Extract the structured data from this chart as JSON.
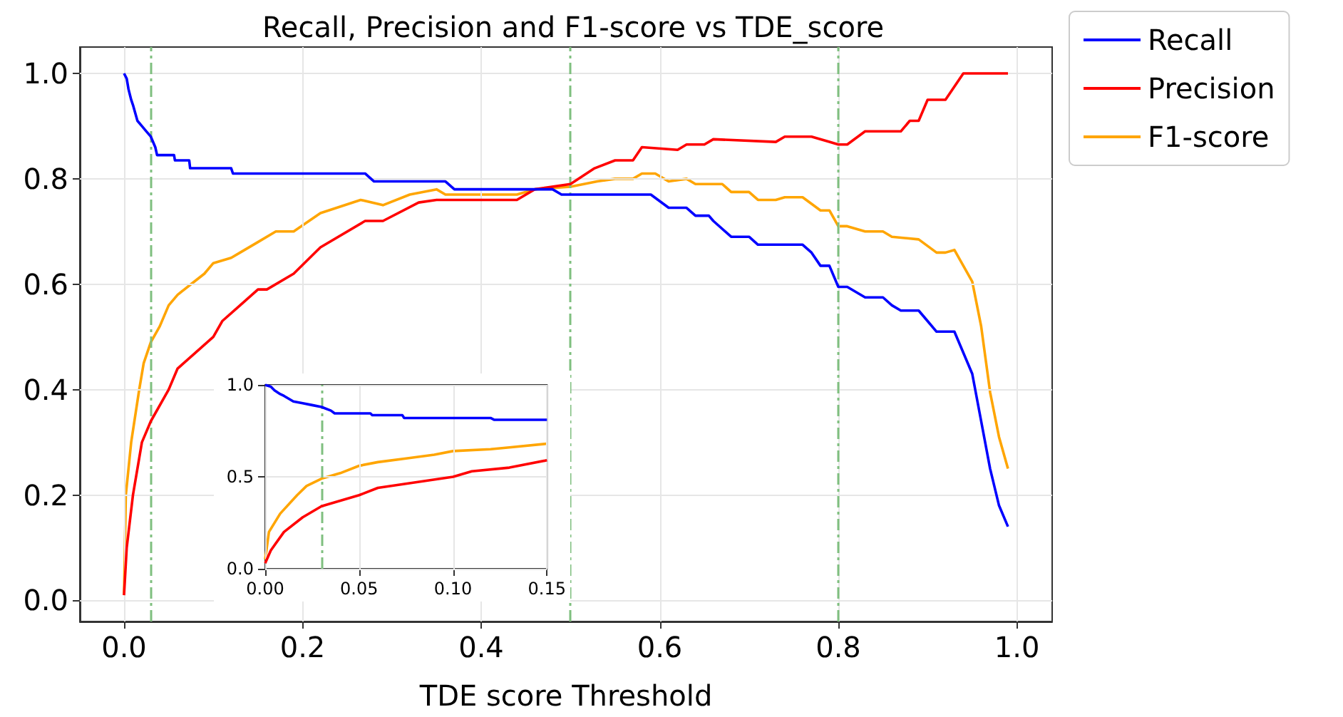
{
  "chart_data": [
    {
      "type": "line",
      "title": "Recall, Precision and F1-score vs TDE_score",
      "xlabel": "TDE score Threshold",
      "xlim": [
        -0.0495,
        1.0395
      ],
      "ylim": [
        -0.04,
        1.05
      ],
      "xticks": [
        {
          "value": 0,
          "label": "0.0"
        },
        {
          "value": 0.2,
          "label": "0.2"
        },
        {
          "value": 0.4,
          "label": "0.4"
        },
        {
          "value": 0.6,
          "label": "0.6"
        },
        {
          "value": 0.8,
          "label": "0.8"
        },
        {
          "value": 1,
          "label": "1.0"
        }
      ],
      "yticks": [
        {
          "value": 0,
          "label": "0.0"
        },
        {
          "value": 0.2,
          "label": "0.2"
        },
        {
          "value": 0.4,
          "label": "0.4"
        },
        {
          "value": 0.6,
          "label": "0.6"
        },
        {
          "value": 0.8,
          "label": "0.8"
        },
        {
          "value": 1,
          "label": "1.0"
        }
      ],
      "grid": true,
      "legend": "top right",
      "marker": "none",
      "line_style": "solid",
      "series": [
        {
          "name": "Recall",
          "color": "#0000ff",
          "x": [
            0,
            0.003,
            0.005,
            0.008,
            0.01,
            0.015,
            0.02,
            0.025,
            0.03,
            0.035,
            0.037,
            0.056,
            0.057,
            0.073,
            0.074,
            0.12,
            0.122,
            0.27,
            0.28,
            0.36,
            0.37,
            0.48,
            0.49,
            0.59,
            0.61,
            0.63,
            0.64,
            0.655,
            0.66,
            0.68,
            0.7,
            0.71,
            0.76,
            0.77,
            0.78,
            0.79,
            0.8,
            0.81,
            0.83,
            0.85,
            0.86,
            0.87,
            0.89,
            0.9,
            0.91,
            0.93,
            0.95,
            0.96,
            0.97,
            0.98,
            0.99
          ],
          "values": [
            1.0,
            0.99,
            0.97,
            0.95,
            0.94,
            0.91,
            0.9,
            0.89,
            0.88,
            0.86,
            0.845,
            0.845,
            0.835,
            0.835,
            0.82,
            0.82,
            0.81,
            0.81,
            0.795,
            0.795,
            0.78,
            0.78,
            0.77,
            0.77,
            0.745,
            0.745,
            0.73,
            0.73,
            0.72,
            0.69,
            0.69,
            0.675,
            0.675,
            0.66,
            0.635,
            0.635,
            0.595,
            0.595,
            0.575,
            0.575,
            0.56,
            0.55,
            0.55,
            0.53,
            0.51,
            0.51,
            0.43,
            0.34,
            0.25,
            0.18,
            0.14
          ]
        },
        {
          "name": "Precision",
          "color": "#ff0000",
          "x": [
            0,
            0.003,
            0.01,
            0.02,
            0.03,
            0.05,
            0.06,
            0.08,
            0.1,
            0.11,
            0.13,
            0.15,
            0.16,
            0.19,
            0.22,
            0.27,
            0.29,
            0.33,
            0.35,
            0.44,
            0.46,
            0.5,
            0.527,
            0.55,
            0.57,
            0.58,
            0.62,
            0.63,
            0.65,
            0.66,
            0.73,
            0.74,
            0.77,
            0.79,
            0.8,
            0.81,
            0.83,
            0.87,
            0.88,
            0.89,
            0.9,
            0.92,
            0.94,
            0.99
          ],
          "values": [
            0.01,
            0.1,
            0.2,
            0.3,
            0.34,
            0.4,
            0.44,
            0.47,
            0.5,
            0.53,
            0.56,
            0.59,
            0.59,
            0.62,
            0.67,
            0.72,
            0.72,
            0.755,
            0.76,
            0.76,
            0.78,
            0.79,
            0.82,
            0.835,
            0.835,
            0.86,
            0.855,
            0.865,
            0.865,
            0.875,
            0.87,
            0.88,
            0.88,
            0.87,
            0.865,
            0.865,
            0.89,
            0.89,
            0.91,
            0.91,
            0.95,
            0.95,
            1.0,
            1.0
          ]
        },
        {
          "name": "F1-score",
          "color": "#ffa500",
          "x": [
            0,
            0.002,
            0.008,
            0.017,
            0.022,
            0.03,
            0.04,
            0.05,
            0.06,
            0.075,
            0.09,
            0.1,
            0.12,
            0.13,
            0.15,
            0.17,
            0.19,
            0.22,
            0.265,
            0.29,
            0.32,
            0.35,
            0.36,
            0.44,
            0.46,
            0.5,
            0.53,
            0.55,
            0.57,
            0.58,
            0.595,
            0.61,
            0.63,
            0.64,
            0.67,
            0.68,
            0.7,
            0.71,
            0.73,
            0.74,
            0.76,
            0.78,
            0.79,
            0.8,
            0.81,
            0.83,
            0.85,
            0.86,
            0.89,
            0.91,
            0.92,
            0.93,
            0.95,
            0.96,
            0.97,
            0.98,
            0.99
          ],
          "values": [
            0.01,
            0.2,
            0.3,
            0.4,
            0.45,
            0.49,
            0.52,
            0.56,
            0.58,
            0.6,
            0.62,
            0.64,
            0.65,
            0.66,
            0.68,
            0.7,
            0.7,
            0.735,
            0.76,
            0.75,
            0.77,
            0.78,
            0.77,
            0.77,
            0.78,
            0.785,
            0.795,
            0.8,
            0.8,
            0.81,
            0.81,
            0.795,
            0.8,
            0.79,
            0.79,
            0.775,
            0.775,
            0.76,
            0.76,
            0.765,
            0.765,
            0.74,
            0.74,
            0.71,
            0.71,
            0.7,
            0.7,
            0.69,
            0.685,
            0.66,
            0.66,
            0.665,
            0.605,
            0.52,
            0.395,
            0.31,
            0.25
          ]
        }
      ],
      "ref_lines": [
        {
          "axis": "x",
          "value": 0.03,
          "color": "#7fbf7f",
          "line_style": "dashed"
        },
        {
          "axis": "x",
          "value": 0.5,
          "color": "#7fbf7f",
          "line_style": "dashed"
        },
        {
          "axis": "x",
          "value": 0.8,
          "color": "#7fbf7f",
          "line_style": "dashed"
        }
      ]
    },
    {
      "type": "line",
      "xlim": [
        0,
        0.15
      ],
      "ylim": [
        0,
        1
      ],
      "xticks": [
        {
          "value": 0,
          "label": "0.00"
        },
        {
          "value": 0.05,
          "label": "0.05"
        },
        {
          "value": 0.1,
          "label": "0.10"
        },
        {
          "value": 0.15,
          "label": "0.15"
        }
      ],
      "yticks": [
        {
          "value": 0,
          "label": "0.0"
        },
        {
          "value": 0.5,
          "label": "0.5"
        },
        {
          "value": 1,
          "label": "1.0"
        }
      ],
      "grid": true,
      "marker": "none",
      "line_style": "solid",
      "series": [
        {
          "color": "#0000ff",
          "x": [
            0,
            0.003,
            0.005,
            0.008,
            0.01,
            0.015,
            0.02,
            0.025,
            0.03,
            0.035,
            0.037,
            0.056,
            0.057,
            0.073,
            0.074,
            0.12,
            0.122,
            0.15
          ],
          "values": [
            1.0,
            0.99,
            0.97,
            0.95,
            0.94,
            0.91,
            0.9,
            0.89,
            0.88,
            0.86,
            0.845,
            0.845,
            0.835,
            0.835,
            0.82,
            0.82,
            0.81,
            0.81
          ]
        },
        {
          "color": "#ff0000",
          "x": [
            0,
            0.003,
            0.01,
            0.02,
            0.03,
            0.05,
            0.06,
            0.08,
            0.1,
            0.11,
            0.13,
            0.15
          ],
          "values": [
            0.03,
            0.1,
            0.2,
            0.28,
            0.34,
            0.4,
            0.44,
            0.47,
            0.5,
            0.53,
            0.55,
            0.59
          ]
        },
        {
          "color": "#ffa500",
          "x": [
            0,
            0.002,
            0.008,
            0.017,
            0.022,
            0.03,
            0.04,
            0.05,
            0.06,
            0.075,
            0.09,
            0.1,
            0.12,
            0.13,
            0.15
          ],
          "values": [
            0.05,
            0.2,
            0.3,
            0.4,
            0.45,
            0.49,
            0.52,
            0.56,
            0.58,
            0.6,
            0.62,
            0.64,
            0.65,
            0.66,
            0.68
          ]
        }
      ],
      "ref_lines": [
        {
          "axis": "x",
          "value": 0.03,
          "color": "#7fbf7f",
          "line_style": "dashed"
        }
      ]
    }
  ]
}
